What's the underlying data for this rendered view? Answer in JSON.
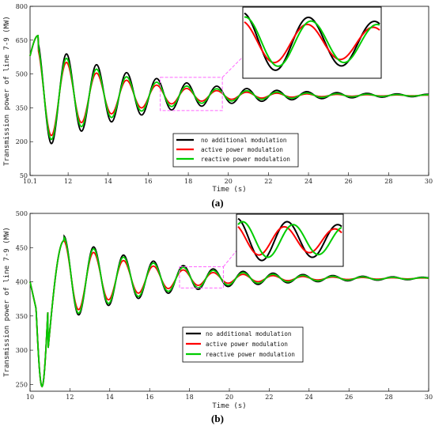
{
  "chart_data": [
    {
      "type": "line",
      "panel_label": "(a)",
      "xlabel": "Time (s)",
      "ylabel": "Transmission power of line 7-9 (MW)",
      "xlim": [
        10.1,
        30
      ],
      "ylim": [
        50,
        800
      ],
      "x_ticks": [
        "10.1",
        "12",
        "14",
        "16",
        "18",
        "20",
        "22",
        "24",
        "26",
        "28",
        "30"
      ],
      "x_tick_values": [
        10.1,
        12,
        14,
        16,
        18,
        20,
        22,
        24,
        26,
        28,
        30
      ],
      "y_ticks": [
        "50",
        "200",
        "350",
        "500",
        "650",
        "800"
      ],
      "y_tick_values": [
        50,
        200,
        350,
        500,
        650,
        800
      ],
      "legend": [
        "no additional modulation",
        "active power modulation",
        "reactive power modulation"
      ],
      "legend_position": "lower-middle",
      "zoom_box": {
        "x": [
          16.6,
          19.7
        ],
        "y": [
          338,
          485
        ]
      },
      "series": [
        {
          "name": "no additional modulation",
          "color": "#000000",
          "start": 580,
          "steady": 405,
          "amplitude": 265,
          "period": 1.5,
          "decay": 0.2,
          "t0": 10.1
        },
        {
          "name": "active power modulation",
          "color": "#ff0000",
          "start": 580,
          "steady": 405,
          "amplitude": 235,
          "period": 1.5,
          "decay": 0.26,
          "t0": 10.1
        },
        {
          "name": "reactive power modulation",
          "color": "#00cc00",
          "start": 580,
          "steady": 405,
          "amplitude": 250,
          "period": 1.5,
          "decay": 0.23,
          "t0": 10.1
        }
      ]
    },
    {
      "type": "line",
      "panel_label": "(b)",
      "xlabel": "Time (s)",
      "ylabel": "Transmission power of line 7-9 (MW)",
      "xlim": [
        10,
        30
      ],
      "ylim": [
        240,
        500
      ],
      "x_ticks": [
        "10",
        "12",
        "14",
        "16",
        "18",
        "20",
        "22",
        "24",
        "26",
        "28",
        "30"
      ],
      "x_tick_values": [
        10,
        12,
        14,
        16,
        18,
        20,
        22,
        24,
        26,
        28,
        30
      ],
      "y_ticks": [
        "250",
        "300",
        "350",
        "400",
        "450",
        "500"
      ],
      "y_tick_values": [
        250,
        300,
        350,
        400,
        450,
        500
      ],
      "legend": [
        "no additional modulation",
        "active power modulation",
        "reactive power modulation"
      ],
      "legend_position": "lower-right",
      "zoom_box": {
        "x": [
          17.5,
          19.7
        ],
        "y": [
          391,
          422
        ]
      },
      "series": [
        {
          "name": "no additional modulation",
          "color": "#000000",
          "steady": 405,
          "amplitude": 62,
          "period": 1.5,
          "decay": 0.2,
          "t0": 11.7
        },
        {
          "name": "active power modulation",
          "color": "#ff0000",
          "steady": 405,
          "amplitude": 55,
          "period": 1.5,
          "decay": 0.25,
          "t0": 11.7
        },
        {
          "name": "reactive power modulation",
          "color": "#00cc00",
          "steady": 405,
          "amplitude": 60,
          "period": 1.5,
          "decay": 0.22,
          "t0": 11.7
        }
      ]
    }
  ]
}
